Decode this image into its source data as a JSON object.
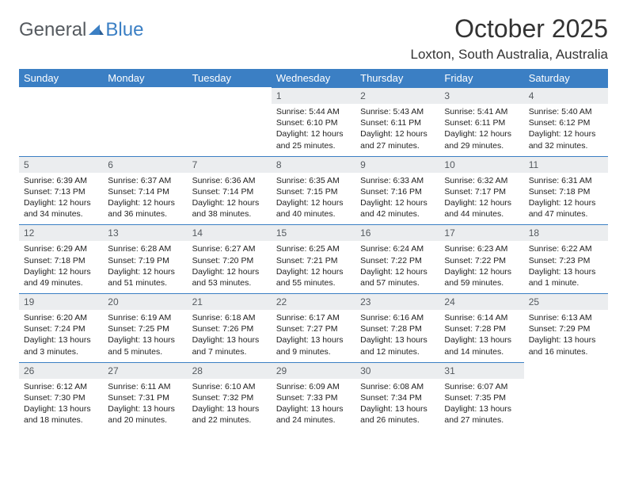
{
  "logo": {
    "text1": "General",
    "text2": "Blue"
  },
  "title": "October 2025",
  "location": "Loxton, South Australia, Australia",
  "header_bg": "#3b7fc4",
  "daynum_bg": "#ebedef",
  "weekdays": [
    "Sunday",
    "Monday",
    "Tuesday",
    "Wednesday",
    "Thursday",
    "Friday",
    "Saturday"
  ],
  "weeks": [
    [
      null,
      null,
      null,
      {
        "n": "1",
        "sr": "5:44 AM",
        "ss": "6:10 PM",
        "dl": "12 hours and 25 minutes."
      },
      {
        "n": "2",
        "sr": "5:43 AM",
        "ss": "6:11 PM",
        "dl": "12 hours and 27 minutes."
      },
      {
        "n": "3",
        "sr": "5:41 AM",
        "ss": "6:11 PM",
        "dl": "12 hours and 29 minutes."
      },
      {
        "n": "4",
        "sr": "5:40 AM",
        "ss": "6:12 PM",
        "dl": "12 hours and 32 minutes."
      }
    ],
    [
      {
        "n": "5",
        "sr": "6:39 AM",
        "ss": "7:13 PM",
        "dl": "12 hours and 34 minutes."
      },
      {
        "n": "6",
        "sr": "6:37 AM",
        "ss": "7:14 PM",
        "dl": "12 hours and 36 minutes."
      },
      {
        "n": "7",
        "sr": "6:36 AM",
        "ss": "7:14 PM",
        "dl": "12 hours and 38 minutes."
      },
      {
        "n": "8",
        "sr": "6:35 AM",
        "ss": "7:15 PM",
        "dl": "12 hours and 40 minutes."
      },
      {
        "n": "9",
        "sr": "6:33 AM",
        "ss": "7:16 PM",
        "dl": "12 hours and 42 minutes."
      },
      {
        "n": "10",
        "sr": "6:32 AM",
        "ss": "7:17 PM",
        "dl": "12 hours and 44 minutes."
      },
      {
        "n": "11",
        "sr": "6:31 AM",
        "ss": "7:18 PM",
        "dl": "12 hours and 47 minutes."
      }
    ],
    [
      {
        "n": "12",
        "sr": "6:29 AM",
        "ss": "7:18 PM",
        "dl": "12 hours and 49 minutes."
      },
      {
        "n": "13",
        "sr": "6:28 AM",
        "ss": "7:19 PM",
        "dl": "12 hours and 51 minutes."
      },
      {
        "n": "14",
        "sr": "6:27 AM",
        "ss": "7:20 PM",
        "dl": "12 hours and 53 minutes."
      },
      {
        "n": "15",
        "sr": "6:25 AM",
        "ss": "7:21 PM",
        "dl": "12 hours and 55 minutes."
      },
      {
        "n": "16",
        "sr": "6:24 AM",
        "ss": "7:22 PM",
        "dl": "12 hours and 57 minutes."
      },
      {
        "n": "17",
        "sr": "6:23 AM",
        "ss": "7:22 PM",
        "dl": "12 hours and 59 minutes."
      },
      {
        "n": "18",
        "sr": "6:22 AM",
        "ss": "7:23 PM",
        "dl": "13 hours and 1 minute."
      }
    ],
    [
      {
        "n": "19",
        "sr": "6:20 AM",
        "ss": "7:24 PM",
        "dl": "13 hours and 3 minutes."
      },
      {
        "n": "20",
        "sr": "6:19 AM",
        "ss": "7:25 PM",
        "dl": "13 hours and 5 minutes."
      },
      {
        "n": "21",
        "sr": "6:18 AM",
        "ss": "7:26 PM",
        "dl": "13 hours and 7 minutes."
      },
      {
        "n": "22",
        "sr": "6:17 AM",
        "ss": "7:27 PM",
        "dl": "13 hours and 9 minutes."
      },
      {
        "n": "23",
        "sr": "6:16 AM",
        "ss": "7:28 PM",
        "dl": "13 hours and 12 minutes."
      },
      {
        "n": "24",
        "sr": "6:14 AM",
        "ss": "7:28 PM",
        "dl": "13 hours and 14 minutes."
      },
      {
        "n": "25",
        "sr": "6:13 AM",
        "ss": "7:29 PM",
        "dl": "13 hours and 16 minutes."
      }
    ],
    [
      {
        "n": "26",
        "sr": "6:12 AM",
        "ss": "7:30 PM",
        "dl": "13 hours and 18 minutes."
      },
      {
        "n": "27",
        "sr": "6:11 AM",
        "ss": "7:31 PM",
        "dl": "13 hours and 20 minutes."
      },
      {
        "n": "28",
        "sr": "6:10 AM",
        "ss": "7:32 PM",
        "dl": "13 hours and 22 minutes."
      },
      {
        "n": "29",
        "sr": "6:09 AM",
        "ss": "7:33 PM",
        "dl": "13 hours and 24 minutes."
      },
      {
        "n": "30",
        "sr": "6:08 AM",
        "ss": "7:34 PM",
        "dl": "13 hours and 26 minutes."
      },
      {
        "n": "31",
        "sr": "6:07 AM",
        "ss": "7:35 PM",
        "dl": "13 hours and 27 minutes."
      },
      null
    ]
  ],
  "labels": {
    "sunrise": "Sunrise:",
    "sunset": "Sunset:",
    "daylight": "Daylight:"
  }
}
